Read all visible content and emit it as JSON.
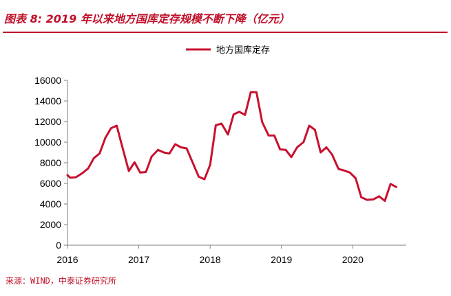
{
  "header": {
    "title": "图表 8:  2019 年以来地方国库定存规模不断下降（亿元）"
  },
  "footer": {
    "source": "来源：WIND，中泰证券研究所"
  },
  "colors": {
    "accent": "#c0102a",
    "series": "#c8102e",
    "axis": "#7f7f7f"
  },
  "chart_data": {
    "type": "line",
    "title": "",
    "xlabel": "",
    "ylabel": "",
    "ylim": [
      0,
      16000
    ],
    "yticks": [
      0,
      2000,
      4000,
      6000,
      8000,
      10000,
      12000,
      14000,
      16000
    ],
    "xlim": [
      2016,
      2020.75
    ],
    "xticks": [
      2016,
      2017,
      2018,
      2019,
      2020
    ],
    "grid": false,
    "legend_position": "top",
    "series": [
      {
        "name": "地方国库定存",
        "points": [
          [
            2016.0,
            6800
          ],
          [
            2016.04,
            6550
          ],
          [
            2016.12,
            6600
          ],
          [
            2016.21,
            7000
          ],
          [
            2016.29,
            7450
          ],
          [
            2016.37,
            8450
          ],
          [
            2016.45,
            8900
          ],
          [
            2016.53,
            10400
          ],
          [
            2016.61,
            11350
          ],
          [
            2016.69,
            11600
          ],
          [
            2016.77,
            9500
          ],
          [
            2016.86,
            7200
          ],
          [
            2016.94,
            8050
          ],
          [
            2017.02,
            7050
          ],
          [
            2017.1,
            7100
          ],
          [
            2017.18,
            8600
          ],
          [
            2017.27,
            9250
          ],
          [
            2017.35,
            9000
          ],
          [
            2017.43,
            8900
          ],
          [
            2017.51,
            9800
          ],
          [
            2017.59,
            9500
          ],
          [
            2017.67,
            9400
          ],
          [
            2017.76,
            7950
          ],
          [
            2017.84,
            6650
          ],
          [
            2017.92,
            6400
          ],
          [
            2018.0,
            7800
          ],
          [
            2018.08,
            11650
          ],
          [
            2018.16,
            11800
          ],
          [
            2018.25,
            10750
          ],
          [
            2018.33,
            12700
          ],
          [
            2018.41,
            12950
          ],
          [
            2018.49,
            12650
          ],
          [
            2018.57,
            14850
          ],
          [
            2018.65,
            14850
          ],
          [
            2018.73,
            11950
          ],
          [
            2018.82,
            10650
          ],
          [
            2018.9,
            10650
          ],
          [
            2018.98,
            9300
          ],
          [
            2019.06,
            9250
          ],
          [
            2019.14,
            8550
          ],
          [
            2019.22,
            9500
          ],
          [
            2019.31,
            10000
          ],
          [
            2019.39,
            11600
          ],
          [
            2019.47,
            11200
          ],
          [
            2019.55,
            9000
          ],
          [
            2019.63,
            9500
          ],
          [
            2019.71,
            8800
          ],
          [
            2019.8,
            7400
          ],
          [
            2019.88,
            7250
          ],
          [
            2019.96,
            7050
          ],
          [
            2020.04,
            6500
          ],
          [
            2020.12,
            4650
          ],
          [
            2020.2,
            4400
          ],
          [
            2020.29,
            4450
          ],
          [
            2020.37,
            4750
          ],
          [
            2020.45,
            4300
          ],
          [
            2020.53,
            5950
          ],
          [
            2020.61,
            5650
          ]
        ]
      }
    ]
  }
}
